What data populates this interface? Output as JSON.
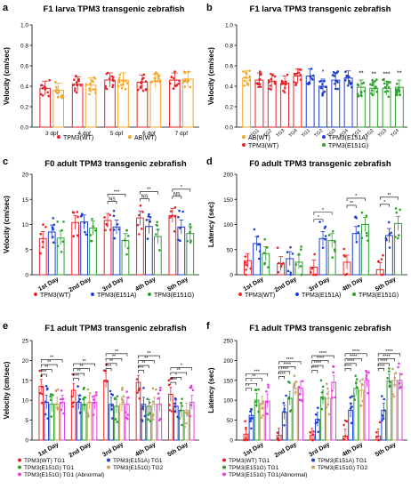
{
  "panels": [
    {
      "letter": "a",
      "title": "F1 larva TPM3 transgenic zebrafish",
      "chart_data": {
        "type": "bar",
        "categories": [
          "3 dpf",
          "4 dpf",
          "5 dpf",
          "6 dpf",
          "7 dpf"
        ],
        "ylabel": "Velocity (cm/sec)",
        "ylim": [
          0,
          1.0
        ],
        "yticks": [
          0.0,
          0.2,
          0.4,
          0.6,
          0.8,
          1.0
        ],
        "series": [
          {
            "name": "TPM3(WT)",
            "color": "#e8232a",
            "values": [
              0.38,
              0.42,
              0.46,
              0.44,
              0.46
            ]
          },
          {
            "name": "AB(WT)",
            "color": "#f5a623",
            "values": [
              0.36,
              0.41,
              0.46,
              0.45,
              0.47
            ]
          }
        ],
        "legend": "bottom"
      }
    },
    {
      "letter": "b",
      "title": "F1 larva TPM3 transgenic zebrafish",
      "chart_data": {
        "type": "bar",
        "categories": [
          "",
          "TG1",
          "TG2",
          "TG3",
          "TG4",
          "TG1",
          "TG2",
          "TG3",
          "TG4",
          "TG1",
          "TG2",
          "TG3",
          "TG4"
        ],
        "ylabel": "Velocity (cm/sec)",
        "ylim": [
          0,
          1.0
        ],
        "yticks": [
          0.0,
          0.2,
          0.4,
          0.6,
          0.8,
          1.0
        ],
        "bar_groups": [
          "AB(WT)",
          "TPM3(WT)",
          "TPM3(WT)",
          "TPM3(WT)",
          "TPM3(WT)",
          "TPM3(E151A)",
          "TPM3(E151A)",
          "TPM3(E151A)",
          "TPM3(E151A)",
          "TPM3(E151G)",
          "TPM3(E151G)",
          "TPM3(E151G)",
          "TPM3(E151G)"
        ],
        "values": [
          0.48,
          0.46,
          0.45,
          0.43,
          0.5,
          0.5,
          0.4,
          0.46,
          0.48,
          0.39,
          0.38,
          0.38,
          0.39
        ],
        "annotations": [
          "",
          "",
          "",
          "",
          "",
          "",
          "*",
          "",
          "",
          "**",
          "**",
          "***",
          "**"
        ],
        "series": [
          {
            "name": "AB(WT)",
            "color": "#f5a623"
          },
          {
            "name": "TPM3(WT)",
            "color": "#e8232a"
          },
          {
            "name": "TPM3(E151A)",
            "color": "#1e3fd0"
          },
          {
            "name": "TPM3(E151G)",
            "color": "#2f9e2f"
          }
        ],
        "legend": "bottom"
      }
    },
    {
      "letter": "c",
      "title": "F0 adult TPM3 transgenic zebrafish",
      "chart_data": {
        "type": "bar",
        "categories": [
          "1st Day",
          "2nd Day",
          "3rd Day",
          "4th Day",
          "5th Day"
        ],
        "ylabel": "Velocity (cm/sec)",
        "ylim": [
          0,
          20
        ],
        "yticks": [
          0,
          5,
          10,
          15,
          20
        ],
        "series": [
          {
            "name": "TPM3(WT)",
            "color": "#e8232a",
            "values": [
              7.2,
              10.4,
              10.8,
              11.3,
              11.8
            ]
          },
          {
            "name": "TPM3(E151A)",
            "color": "#1e3fd0",
            "values": [
              8.5,
              10.5,
              9.5,
              9.6,
              9.5
            ]
          },
          {
            "name": "TPM3(E151G)",
            "color": "#2f9e2f",
            "values": [
              7.3,
              9.3,
              6.8,
              7.6,
              8.2
            ]
          }
        ],
        "brackets": [
          {
            "group": 2,
            "from": 0,
            "to": 1,
            "label": "NS"
          },
          {
            "group": 2,
            "from": 0,
            "to": 2,
            "label": "***"
          },
          {
            "group": 3,
            "from": 0,
            "to": 1,
            "label": "NS"
          },
          {
            "group": 3,
            "from": 0,
            "to": 2,
            "label": "**"
          },
          {
            "group": 4,
            "from": 0,
            "to": 1,
            "label": "NS"
          },
          {
            "group": 4,
            "from": 0,
            "to": 2,
            "label": "*"
          }
        ],
        "legend": "bottom"
      }
    },
    {
      "letter": "d",
      "title": "F0 adult TPM3 transgenic zebrafish",
      "chart_data": {
        "type": "bar",
        "categories": [
          "1st Day",
          "2nd Day",
          "3rd Day",
          "4th Day",
          "5th Day"
        ],
        "ylabel": "Latency (sec)",
        "ylim": [
          0,
          200
        ],
        "yticks": [
          0,
          50,
          100,
          150,
          200
        ],
        "series": [
          {
            "name": "TPM3(WT)",
            "color": "#e8232a",
            "values": [
              28,
              22,
              15,
              25,
              10
            ]
          },
          {
            "name": "TPM3(E151A)",
            "color": "#1e3fd0",
            "values": [
              62,
              32,
              72,
              82,
              78
            ]
          },
          {
            "name": "TPM3(E151G)",
            "color": "#2f9e2f",
            "values": [
              42,
              25,
              68,
              100,
              102
            ]
          }
        ],
        "brackets": [
          {
            "group": 2,
            "from": 0,
            "to": 1,
            "label": "*"
          },
          {
            "group": 2,
            "from": 0,
            "to": 2,
            "label": "*"
          },
          {
            "group": 3,
            "from": 0,
            "to": 1,
            "label": "**"
          },
          {
            "group": 3,
            "from": 0,
            "to": 2,
            "label": "*"
          },
          {
            "group": 4,
            "from": 0,
            "to": 1,
            "label": "*"
          },
          {
            "group": 4,
            "from": 0,
            "to": 2,
            "label": "**"
          }
        ],
        "legend": "bottom"
      }
    },
    {
      "letter": "e",
      "title": "F1 adult TPM3 transgenic zebrafish",
      "chart_data": {
        "type": "bar",
        "categories": [
          "1st Day",
          "2nd Day",
          "3rd Day",
          "4th Day",
          "5th Day"
        ],
        "ylabel": "Velocity (cm/sec)",
        "ylim": [
          0,
          25
        ],
        "yticks": [
          0,
          5,
          10,
          15,
          20,
          25
        ],
        "series": [
          {
            "name": "TPM3(WT) TG1",
            "color": "#e8232a",
            "values": [
              13.5,
              12.5,
              15.0,
              14.5,
              11.5
            ]
          },
          {
            "name": "TPM3(E151A) TG1",
            "color": "#1e3fd0",
            "values": [
              9.5,
              9.5,
              9.0,
              9.0,
              8.5
            ]
          },
          {
            "name": "TPM3(E151G) TG1",
            "color": "#2f9e2f",
            "values": [
              9.0,
              9.0,
              8.5,
              8.5,
              7.5
            ]
          },
          {
            "name": "TPM3(E151G) TG2",
            "color": "#c8a46a",
            "values": [
              9.0,
              9.5,
              9.0,
              9.0,
              7.5
            ]
          },
          {
            "name": "TPM3(E151G) TG1 (Abnormal)",
            "color": "#e040e0",
            "values": [
              9.5,
              9.5,
              9.0,
              9.0,
              9.5
            ]
          }
        ],
        "brackets": [
          {
            "group": 0,
            "span": 4,
            "label": "**"
          },
          {
            "group": 0,
            "span": 3,
            "label": "**"
          },
          {
            "group": 0,
            "span": 2,
            "label": "**"
          },
          {
            "group": 0,
            "span": 1,
            "label": "***"
          },
          {
            "group": 1,
            "span": 4,
            "label": "**"
          },
          {
            "group": 1,
            "span": 3,
            "label": "**"
          },
          {
            "group": 1,
            "span": 2,
            "label": "**"
          },
          {
            "group": 1,
            "span": 1,
            "label": "***"
          },
          {
            "group": 2,
            "span": 4,
            "label": "**"
          },
          {
            "group": 2,
            "span": 3,
            "label": "**"
          },
          {
            "group": 2,
            "span": 2,
            "label": "**"
          },
          {
            "group": 2,
            "span": 1,
            "label": "***"
          },
          {
            "group": 3,
            "span": 4,
            "label": "**"
          },
          {
            "group": 3,
            "span": 3,
            "label": "**"
          },
          {
            "group": 3,
            "span": 2,
            "label": "**"
          },
          {
            "group": 3,
            "span": 1,
            "label": "***"
          },
          {
            "group": 4,
            "span": 4,
            "label": "*"
          },
          {
            "group": 4,
            "span": 3,
            "label": "**"
          },
          {
            "group": 4,
            "span": 2,
            "label": "*"
          },
          {
            "group": 4,
            "span": 1,
            "label": "****"
          }
        ],
        "legend": "bottom"
      }
    },
    {
      "letter": "f",
      "title": "F1 adult TPM3 transgenic zebrafish",
      "chart_data": {
        "type": "bar",
        "categories": [
          "1st Day",
          "2nd Day",
          "3rd Day",
          "4th Day",
          "5th Day"
        ],
        "ylabel": "Latency (sec)",
        "ylim": [
          0,
          250
        ],
        "yticks": [
          0,
          50,
          100,
          150,
          200,
          250
        ],
        "series": [
          {
            "name": "TPM3(WT) TG1",
            "color": "#e8232a",
            "values": [
              15,
              12,
              12,
              10,
              10
            ]
          },
          {
            "name": "TPM3(E151A) TG1",
            "color": "#1e3fd0",
            "values": [
              62,
              70,
              52,
              75,
              75
            ]
          },
          {
            "name": "TPM3(E151G) TG1",
            "color": "#2f9e2f",
            "values": [
              100,
              105,
              108,
              130,
              148
            ]
          },
          {
            "name": "TPM3(E151G) TG2",
            "color": "#c8a46a",
            "values": [
              92,
              130,
              105,
              125,
              150
            ]
          },
          {
            "name": "TPM3(E151G) TG1(Abnormal)",
            "color": "#e040e0",
            "values": [
              98,
              130,
              145,
              150,
              150
            ]
          }
        ],
        "brackets": [
          {
            "group": 0,
            "span": 4,
            "label": "***"
          },
          {
            "group": 0,
            "span": 3,
            "label": "**"
          },
          {
            "group": 0,
            "span": 2,
            "label": "*"
          },
          {
            "group": 0,
            "span": 1,
            "label": "*"
          },
          {
            "group": 1,
            "span": 4,
            "label": "****"
          },
          {
            "group": 1,
            "span": 3,
            "label": "****"
          },
          {
            "group": 1,
            "span": 2,
            "label": "****"
          },
          {
            "group": 1,
            "span": 1,
            "label": "****"
          },
          {
            "group": 2,
            "span": 4,
            "label": "****"
          },
          {
            "group": 2,
            "span": 3,
            "label": "****"
          },
          {
            "group": 2,
            "span": 2,
            "label": "****"
          },
          {
            "group": 2,
            "span": 1,
            "label": "****"
          },
          {
            "group": 3,
            "span": 4,
            "label": "****"
          },
          {
            "group": 3,
            "span": 3,
            "label": "****"
          },
          {
            "group": 3,
            "span": 2,
            "label": "****"
          },
          {
            "group": 3,
            "span": 1,
            "label": "****"
          },
          {
            "group": 4,
            "span": 4,
            "label": "****"
          },
          {
            "group": 4,
            "span": 3,
            "label": "****"
          },
          {
            "group": 4,
            "span": 2,
            "label": "****"
          },
          {
            "group": 4,
            "span": 1,
            "label": "****"
          }
        ],
        "legend": "bottom"
      }
    }
  ]
}
